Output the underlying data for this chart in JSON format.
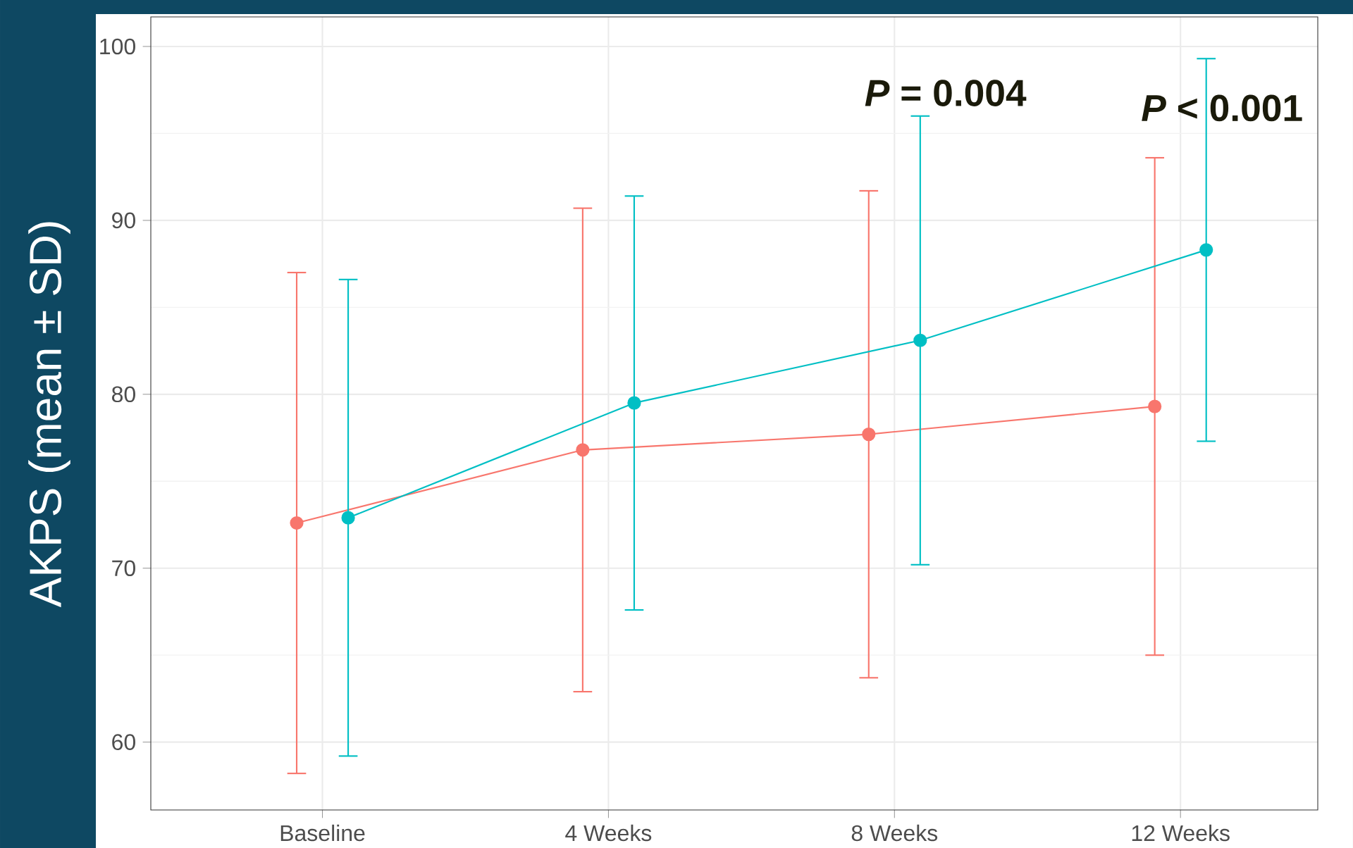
{
  "chart_data": {
    "type": "line",
    "ylabel": "AKPS (mean ± SD)",
    "categories": [
      "Baseline",
      "4 Weeks",
      "8 Weeks",
      "12 Weeks"
    ],
    "series": [
      {
        "color": "#f8766d",
        "values": [
          72.6,
          76.8,
          77.7,
          79.3
        ],
        "errors": [
          14.4,
          13.9,
          14.0,
          14.3
        ]
      },
      {
        "color": "#00bfc4",
        "values": [
          72.9,
          79.5,
          83.1,
          88.3
        ],
        "errors": [
          13.7,
          11.9,
          12.9,
          11.0
        ]
      }
    ],
    "ylim": [
      56.1,
      101.7
    ],
    "yticks": [
      60,
      70,
      80,
      90,
      100
    ],
    "grid": true,
    "marker": "circle",
    "line_style": "solid",
    "annotations": [
      "*P* = 0.004",
      "*P* < 0.001"
    ]
  }
}
